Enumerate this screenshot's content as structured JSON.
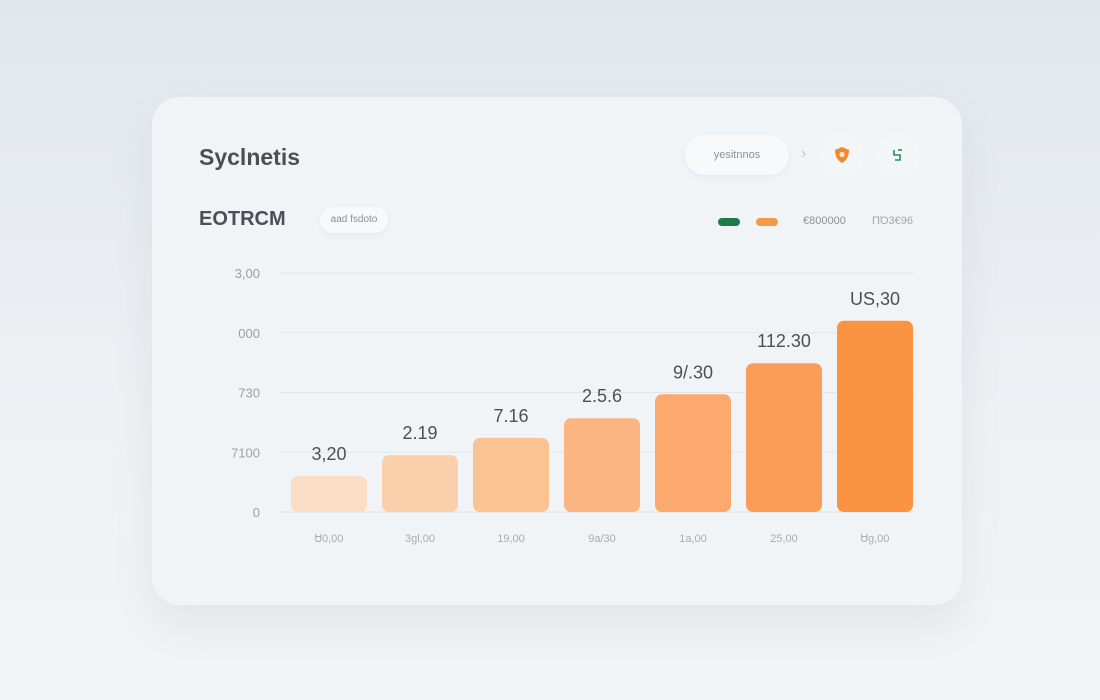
{
  "header": {
    "title": "Syclnetis",
    "selector_label": "yesitnnos",
    "subtitle": "EOTRCM",
    "subtitle_badge": "aad fsdoto"
  },
  "icons": {
    "chevron": "chevron-right-icon",
    "primary": "shield-icon",
    "secondary": "refresh-icon"
  },
  "legend": [
    {
      "label": "",
      "color": "#1f7a4a"
    },
    {
      "label": "",
      "color": "#f59a45"
    }
  ],
  "legend_text": [
    "€800000",
    "ΠΌ3€96"
  ],
  "colors": {
    "accent": "#f59a45",
    "green": "#1f7a4a"
  },
  "chart_data": {
    "type": "bar",
    "categories": [
      "Ꮜ0,00",
      "3gl,00",
      "19,00",
      "9a/30",
      "1a,00",
      "25,00",
      "Ꮜg,00"
    ],
    "values": [
      0.6,
      0.95,
      1.24,
      1.57,
      1.97,
      2.49,
      3.2
    ],
    "data_labels": [
      "3,20",
      "2.19",
      "7.16",
      "2.5.6",
      "9/.30",
      "112.30",
      "US,30"
    ],
    "y_ticks": [
      0,
      1,
      2,
      3,
      4
    ],
    "y_tick_labels": [
      "0",
      "7100",
      "730",
      "000",
      "3,00"
    ],
    "ylim": [
      0,
      4
    ],
    "grid": true,
    "legend_position": "top-right",
    "bar_colors": [
      "#fbdcc4",
      "#fbcfaa",
      "#fbc394",
      "#fbb580",
      "#fba96c",
      "#fb9d58",
      "#fa9443"
    ]
  }
}
